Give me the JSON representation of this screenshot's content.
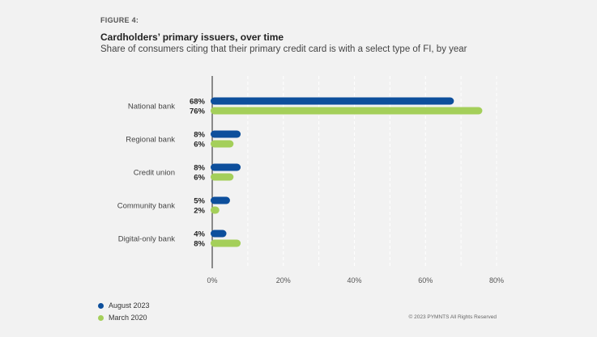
{
  "header": {
    "figure_label": "FIGURE 4:",
    "title": "Cardholders’ primary issuers, over time",
    "subtitle": "Share of consumers citing that their primary credit card is with a select type of FI, by year"
  },
  "chart_data": {
    "type": "bar",
    "orientation": "horizontal",
    "title": "Cardholders’ primary issuers, over time",
    "subtitle": "Share of consumers citing that their primary credit card is with a select type of FI, by year",
    "categories": [
      "National bank",
      "Regional bank",
      "Credit union",
      "Community bank",
      "Digital-only bank"
    ],
    "series": [
      {
        "name": "August 2023",
        "color": "#0d4f9c",
        "values": [
          68,
          8,
          8,
          5,
          4
        ],
        "labels": [
          "68%",
          "8%",
          "8%",
          "5%",
          "4%"
        ]
      },
      {
        "name": "March 2020",
        "color": "#a4cf5a",
        "values": [
          76,
          6,
          6,
          2,
          8
        ],
        "labels": [
          "76%",
          "6%",
          "6%",
          "2%",
          "8%"
        ]
      }
    ],
    "xlim": [
      0,
      80
    ],
    "xticks": [
      0,
      20,
      40,
      60,
      80
    ],
    "xtick_labels": [
      "0%",
      "20%",
      "40%",
      "60%",
      "80%"
    ],
    "grid": "vertical dashed",
    "legend_position": "bottom-left",
    "xlabel": "",
    "ylabel": ""
  },
  "legend": {
    "items": [
      {
        "label": "August 2023",
        "color": "#0d4f9c"
      },
      {
        "label": "March 2020",
        "color": "#a4cf5a"
      }
    ]
  },
  "footer": {
    "copyright": "© 2023 PYMNTS All Rights Reserved"
  }
}
